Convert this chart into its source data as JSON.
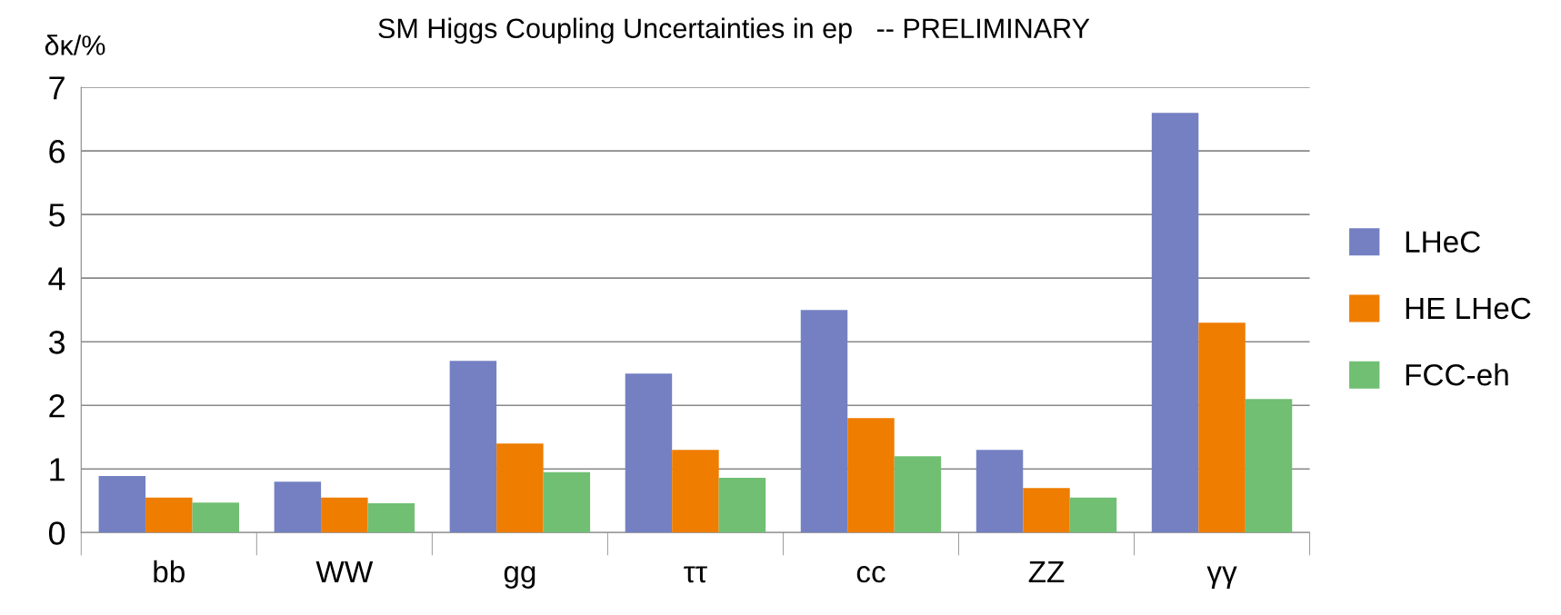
{
  "chart_data": {
    "type": "bar",
    "title": "SM Higgs Coupling Uncertainties in ep   -- PRELIMINARY",
    "ylabel": "δκ/%",
    "categories": [
      "bb",
      "WW",
      "gg",
      "ττ",
      "cc",
      "ZZ",
      "γγ"
    ],
    "series": [
      {
        "name": "LHeC",
        "color": "#7480c2",
        "values": [
          0.89,
          0.8,
          2.7,
          2.5,
          3.5,
          1.3,
          6.6
        ]
      },
      {
        "name": "HE LHeC",
        "color": "#ee7d00",
        "values": [
          0.55,
          0.55,
          1.4,
          1.3,
          1.8,
          0.7,
          3.3
        ]
      },
      {
        "name": "FCC-eh",
        "color": "#70bf73",
        "values": [
          0.47,
          0.46,
          0.95,
          0.86,
          1.2,
          0.55,
          2.1
        ]
      }
    ],
    "ylim": [
      0,
      7
    ],
    "yticks": [
      0,
      1,
      2,
      3,
      4,
      5,
      6,
      7
    ],
    "grid": "y",
    "legend": "right"
  }
}
